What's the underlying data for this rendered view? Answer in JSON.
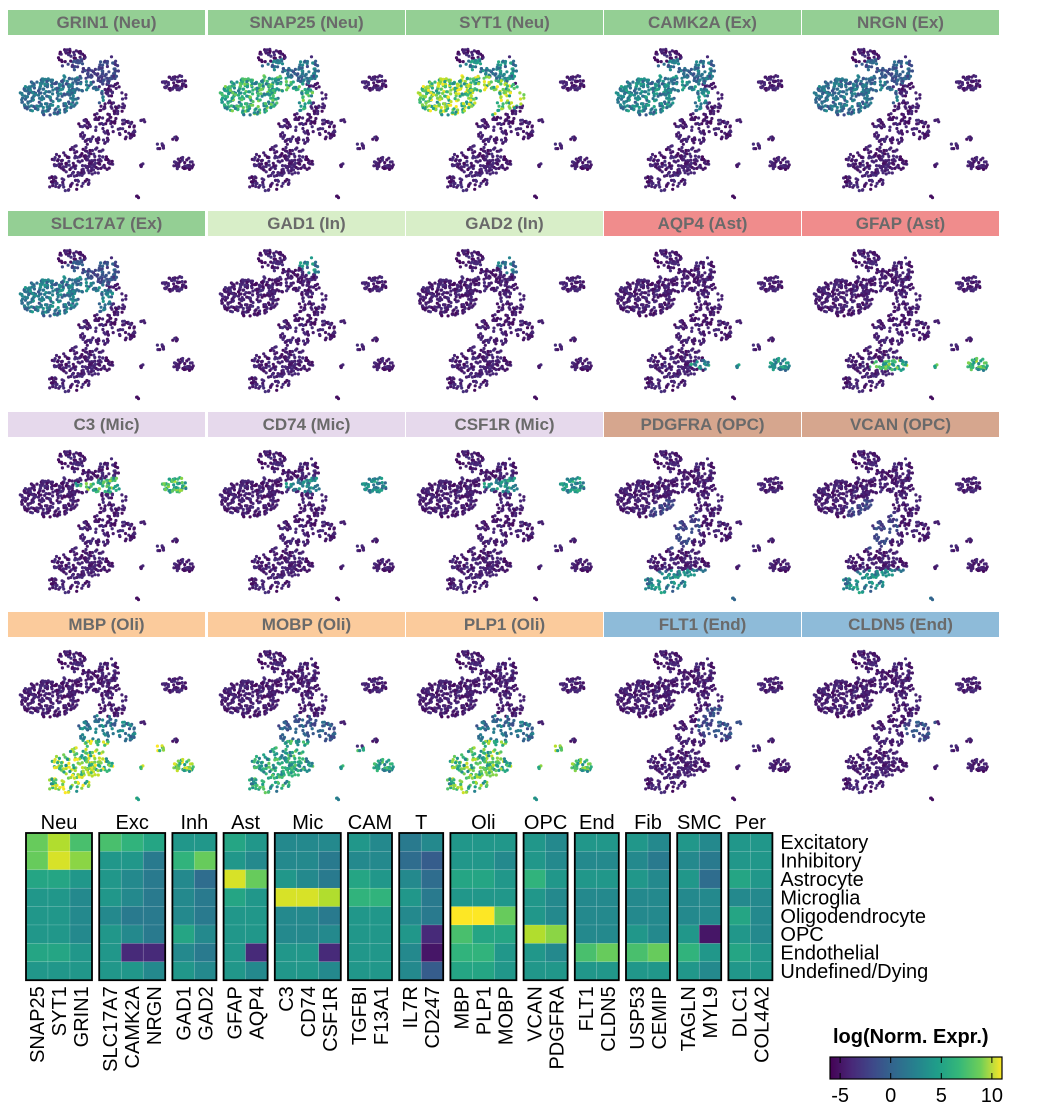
{
  "umap_panels": [
    {
      "title": "GRIN1 (Neu)",
      "group": "Neu",
      "hot": [
        [
          0.2,
          0.35,
          0.3,
          0.14,
          0.13,
          0.45
        ],
        [
          0.45,
          0.2,
          0.2,
          0.08,
          0.08,
          0.25
        ]
      ]
    },
    {
      "title": "SNAP25 (Neu)",
      "group": "Neu",
      "hot": [
        [
          0.2,
          0.35,
          0.35,
          0.14,
          0.13,
          0.75
        ],
        [
          0.45,
          0.2,
          0.2,
          0.08,
          0.08,
          0.45
        ]
      ]
    },
    {
      "title": "SYT1 (Neu)",
      "group": "Neu",
      "hot": [
        [
          0.2,
          0.35,
          0.42,
          0.14,
          0.13,
          0.95
        ],
        [
          0.45,
          0.2,
          0.22,
          0.08,
          0.08,
          0.55
        ]
      ]
    },
    {
      "title": "CAMK2A (Ex)",
      "group": "Ex",
      "hot": [
        [
          0.2,
          0.35,
          0.35,
          0.14,
          0.13,
          0.55
        ],
        [
          0.45,
          0.2,
          0.2,
          0.08,
          0.08,
          0.45
        ]
      ]
    },
    {
      "title": "NRGN (Ex)",
      "group": "Ex",
      "hot": [
        [
          0.2,
          0.35,
          0.3,
          0.14,
          0.13,
          0.45
        ],
        [
          0.45,
          0.2,
          0.2,
          0.08,
          0.08,
          0.35
        ]
      ]
    },
    {
      "title": "SLC17A7 (Ex)",
      "group": "Ex",
      "hot": [
        [
          0.2,
          0.35,
          0.35,
          0.14,
          0.13,
          0.5
        ],
        [
          0.45,
          0.2,
          0.2,
          0.08,
          0.08,
          0.3
        ]
      ]
    },
    {
      "title": "GAD1 (In)",
      "group": "In",
      "hot": [
        [
          0.55,
          0.15,
          0.08,
          0.06,
          0.06,
          0.55
        ]
      ]
    },
    {
      "title": "GAD2 (In)",
      "group": "In",
      "hot": [
        [
          0.55,
          0.15,
          0.08,
          0.06,
          0.06,
          0.45
        ]
      ]
    },
    {
      "title": "AQP4 (Ast)",
      "group": "Ast",
      "hot": [
        [
          0.93,
          0.75,
          0.5,
          0.05,
          0.04,
          0.6
        ]
      ]
    },
    {
      "title": "GFAP (Ast)",
      "group": "Ast",
      "hot": [
        [
          0.93,
          0.75,
          0.6,
          0.05,
          0.04,
          0.8
        ]
      ]
    },
    {
      "title": "C3 (Mic)",
      "group": "Mic",
      "hot": [
        [
          0.88,
          0.27,
          0.55,
          0.06,
          0.05,
          0.8
        ]
      ]
    },
    {
      "title": "CD74 (Mic)",
      "group": "Mic",
      "hot": [
        [
          0.88,
          0.27,
          0.5,
          0.06,
          0.05,
          0.55
        ]
      ]
    },
    {
      "title": "CSF1R (Mic)",
      "group": "Mic",
      "hot": [
        [
          0.88,
          0.27,
          0.5,
          0.06,
          0.05,
          0.6
        ]
      ]
    },
    {
      "title": "PDGFRA (OPC)",
      "group": "OPC",
      "hot": [
        [
          0.45,
          0.87,
          0.45,
          0.1,
          0.04,
          0.55
        ],
        [
          0.35,
          0.5,
          0.15,
          0.15,
          0.15,
          0.25
        ]
      ]
    },
    {
      "title": "VCAN (OPC)",
      "group": "OPC",
      "hot": [
        [
          0.45,
          0.87,
          0.45,
          0.1,
          0.04,
          0.55
        ],
        [
          0.35,
          0.5,
          0.15,
          0.15,
          0.15,
          0.25
        ]
      ]
    },
    {
      "title": "MBP (Oli)",
      "group": "Oli",
      "hot": [
        [
          0.38,
          0.8,
          0.85,
          0.2,
          0.1,
          0.95
        ],
        [
          0.45,
          0.6,
          0.3,
          0.15,
          0.1,
          0.5
        ]
      ]
    },
    {
      "title": "MOBP (Oli)",
      "group": "Oli",
      "hot": [
        [
          0.38,
          0.8,
          0.75,
          0.2,
          0.1,
          0.7
        ],
        [
          0.45,
          0.6,
          0.3,
          0.15,
          0.1,
          0.35
        ]
      ]
    },
    {
      "title": "PLP1 (Oli)",
      "group": "Oli",
      "hot": [
        [
          0.38,
          0.8,
          0.85,
          0.2,
          0.1,
          0.85
        ],
        [
          0.45,
          0.6,
          0.3,
          0.15,
          0.1,
          0.45
        ]
      ]
    },
    {
      "title": "FLT1 (End)",
      "group": "End",
      "hot": [
        [
          0.6,
          0.5,
          0.12,
          0.1,
          0.08,
          0.3
        ]
      ]
    },
    {
      "title": "CLDN5 (End)",
      "group": "End",
      "hot": [
        [
          0.62,
          0.55,
          0.1,
          0.1,
          0.08,
          0.3
        ]
      ]
    }
  ],
  "group_colors": {
    "Neu": "#94cf94",
    "Ex": "#94cf94",
    "In": "#d8eec8",
    "Ast": "#f08c8c",
    "Mic": "#e6d9ec",
    "OPC": "#d6a68e",
    "Oli": "#fbcb9c",
    "End": "#8ebbd9"
  },
  "chart_data": {
    "type": "heatmap",
    "groups": [
      {
        "label": "Neu",
        "genes": [
          "SNAP25",
          "SYT1",
          "GRIN1"
        ]
      },
      {
        "label": "Exc",
        "genes": [
          "SLC17A7",
          "CAMK2A",
          "NRGN"
        ]
      },
      {
        "label": "Inh",
        "genes": [
          "GAD1",
          "GAD2"
        ]
      },
      {
        "label": "Ast",
        "genes": [
          "GFAP",
          "AQP4"
        ]
      },
      {
        "label": "Mic",
        "genes": [
          "C3",
          "CD74",
          "CSF1R"
        ]
      },
      {
        "label": "CAM",
        "genes": [
          "TGFBI",
          "F13A1"
        ]
      },
      {
        "label": "T",
        "genes": [
          "IL7R",
          "CD247"
        ]
      },
      {
        "label": "Oli",
        "genes": [
          "MBP",
          "PLP1",
          "MOBP"
        ]
      },
      {
        "label": "OPC",
        "genes": [
          "VCAN",
          "PDGFRA"
        ]
      },
      {
        "label": "End",
        "genes": [
          "FLT1",
          "CLDN5"
        ]
      },
      {
        "label": "Fib",
        "genes": [
          "USP53",
          "CEMIP"
        ]
      },
      {
        "label": "SMC",
        "genes": [
          "TAGLN",
          "MYL9"
        ]
      },
      {
        "label": "Per",
        "genes": [
          "DLC1",
          "COL4A2"
        ]
      }
    ],
    "rows": [
      "Excitatory",
      "Inhibitory",
      "Astrocyte",
      "Microglia",
      "Oligodendrocyte",
      "OPC",
      "Endothelial",
      "Undefined/Dying"
    ],
    "values": [
      [
        7,
        9,
        6,
        6,
        5,
        4,
        3,
        3,
        4,
        3,
        2,
        2,
        2,
        3,
        2,
        1,
        2,
        3,
        3,
        3,
        3,
        2,
        3,
        3,
        3,
        2,
        3,
        2,
        3,
        3
      ],
      [
        7,
        10,
        8,
        3,
        3,
        1,
        5,
        7,
        3,
        2,
        2,
        2,
        1,
        2,
        2,
        0,
        -1,
        3,
        3,
        2,
        3,
        2,
        2,
        2,
        2,
        1,
        2,
        1,
        3,
        3
      ],
      [
        4,
        4,
        3,
        3,
        2,
        1,
        2,
        0,
        10,
        7,
        3,
        2,
        1,
        4,
        3,
        2,
        0,
        4,
        4,
        3,
        5,
        3,
        3,
        3,
        3,
        2,
        3,
        0,
        4,
        3
      ],
      [
        3,
        3,
        2,
        3,
        2,
        1,
        2,
        1,
        4,
        3,
        10,
        10,
        9,
        5,
        5,
        3,
        1,
        3,
        3,
        3,
        3,
        2,
        2,
        2,
        2,
        2,
        2,
        2,
        2,
        2
      ],
      [
        3,
        3,
        2,
        2,
        1,
        1,
        2,
        1,
        3,
        3,
        2,
        2,
        1,
        3,
        3,
        2,
        1,
        11,
        11,
        7,
        3,
        2,
        2,
        2,
        2,
        2,
        2,
        2,
        4,
        2
      ],
      [
        3,
        3,
        2,
        3,
        2,
        1,
        4,
        2,
        3,
        3,
        2,
        2,
        2,
        3,
        3,
        3,
        -4,
        6,
        4,
        4,
        9,
        8,
        2,
        2,
        3,
        2,
        3,
        -5,
        3,
        2
      ],
      [
        4,
        4,
        3,
        3,
        -4,
        -4,
        2,
        1,
        3,
        -4,
        3,
        3,
        -4,
        3,
        3,
        2,
        -5,
        5,
        5,
        3,
        3,
        2,
        6,
        7,
        6,
        7,
        5,
        3,
        4,
        3
      ],
      [
        3,
        3,
        3,
        3,
        3,
        2,
        3,
        2,
        3,
        2,
        3,
        3,
        2,
        3,
        3,
        2,
        -1,
        4,
        4,
        3,
        3,
        3,
        3,
        3,
        3,
        3,
        3,
        2,
        3,
        3
      ]
    ],
    "colorbar": {
      "title": "log(Norm. Expr.)",
      "min": -6,
      "max": 11,
      "ticks": [
        -5,
        0,
        5,
        10
      ]
    }
  }
}
